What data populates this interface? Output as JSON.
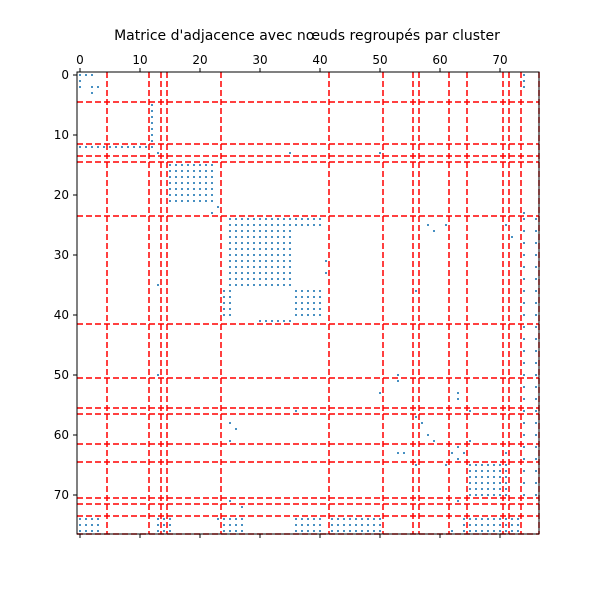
{
  "chart_data": {
    "type": "heatmap",
    "title": "Matrice d'adjacence avec nœuds regroupés par cluster",
    "xlabel": "",
    "ylabel": "",
    "xlim": [
      -0.5,
      76.5
    ],
    "ylim": [
      76.5,
      -0.5
    ],
    "x_ticks": [
      "0",
      "10",
      "20",
      "30",
      "40",
      "50",
      "60",
      "70"
    ],
    "y_ticks": [
      "0",
      "10",
      "20",
      "30",
      "40",
      "50",
      "60",
      "70"
    ],
    "x_tick_position": "top",
    "cluster_boundaries": [
      4.5,
      11.5,
      13.5,
      14.5,
      23.5,
      41.5,
      50.5,
      55.5,
      56.5,
      61.5,
      64.5,
      70.5,
      71.5,
      73.5,
      76.5
    ],
    "boundary_color": "#ff0000",
    "marker_color": "#1f77b4",
    "blocks": [
      {
        "rows": [
          0,
          3
        ],
        "cols": [
          0,
          3
        ],
        "step": 2
      },
      {
        "rows": [
          12,
          12
        ],
        "cols": [
          0,
          11
        ],
        "step": 1
      },
      {
        "rows": [
          15,
          21
        ],
        "cols": [
          15,
          22
        ],
        "step": 1
      },
      {
        "rows": [
          24,
          35
        ],
        "cols": [
          25,
          35
        ],
        "step": 1
      },
      {
        "rows": [
          36,
          40
        ],
        "cols": [
          24,
          25
        ],
        "step": 1
      },
      {
        "rows": [
          36,
          40
        ],
        "cols": [
          36,
          40
        ],
        "step": 1
      },
      {
        "rows": [
          24,
          25
        ],
        "cols": [
          36,
          40
        ],
        "step": 1
      },
      {
        "rows": [
          24,
          70
        ],
        "cols": [
          74,
          76
        ],
        "step": 2
      },
      {
        "rows": [
          65,
          70
        ],
        "cols": [
          65,
          71
        ],
        "step": 1
      },
      {
        "rows": [
          74,
          76
        ],
        "cols": [
          42,
          50
        ],
        "step": 1
      },
      {
        "rows": [
          74,
          76
        ],
        "cols": [
          24,
          27
        ],
        "step": 1
      },
      {
        "rows": [
          74,
          76
        ],
        "cols": [
          36,
          40
        ],
        "step": 1
      },
      {
        "rows": [
          74,
          76
        ],
        "cols": [
          64,
          73
        ],
        "step": 1
      },
      {
        "rows": [
          74,
          76
        ],
        "cols": [
          0,
          3
        ],
        "step": 1
      },
      {
        "rows": [
          74,
          76
        ],
        "cols": [
          13,
          15
        ],
        "step": 1
      }
    ],
    "points": [
      [
        1,
        0
      ],
      [
        0,
        1
      ],
      [
        2,
        3
      ],
      [
        3,
        2
      ],
      [
        0,
        74
      ],
      [
        1,
        74
      ],
      [
        2,
        74
      ],
      [
        74,
        0
      ],
      [
        74,
        1
      ],
      [
        12,
        12
      ],
      [
        13,
        13
      ],
      [
        5,
        12
      ],
      [
        6,
        12
      ],
      [
        7,
        12
      ],
      [
        8,
        12
      ],
      [
        9,
        12
      ],
      [
        10,
        12
      ],
      [
        11,
        12
      ],
      [
        12,
        5
      ],
      [
        12,
        6
      ],
      [
        12,
        7
      ],
      [
        12,
        8
      ],
      [
        12,
        9
      ],
      [
        12,
        10
      ],
      [
        12,
        11
      ],
      [
        22,
        23
      ],
      [
        23,
        22
      ],
      [
        13,
        35
      ],
      [
        35,
        13
      ],
      [
        23,
        74
      ],
      [
        74,
        23
      ],
      [
        27,
        32
      ],
      [
        32,
        27
      ],
      [
        31,
        41
      ],
      [
        41,
        31
      ],
      [
        33,
        41
      ],
      [
        25,
        58
      ],
      [
        26,
        59
      ],
      [
        25,
        61
      ],
      [
        58,
        25
      ],
      [
        59,
        26
      ],
      [
        61,
        25
      ],
      [
        50,
        13
      ],
      [
        13,
        50
      ],
      [
        53,
        50
      ],
      [
        50,
        53
      ],
      [
        51,
        53
      ],
      [
        56,
        36
      ],
      [
        36,
        56
      ],
      [
        56,
        74
      ],
      [
        57,
        56
      ],
      [
        58,
        57
      ],
      [
        60,
        58
      ],
      [
        61,
        59
      ],
      [
        62,
        63
      ],
      [
        63,
        62
      ],
      [
        63,
        64
      ],
      [
        64,
        63
      ],
      [
        54,
        63
      ],
      [
        53,
        63
      ],
      [
        63,
        53
      ],
      [
        63,
        54
      ],
      [
        61,
        65
      ],
      [
        65,
        61
      ],
      [
        41,
        30
      ],
      [
        41,
        31
      ],
      [
        41,
        32
      ],
      [
        41,
        33
      ],
      [
        41,
        34
      ],
      [
        41,
        35
      ],
      [
        25,
        71
      ],
      [
        71,
        25
      ],
      [
        27,
        72
      ],
      [
        72,
        27
      ],
      [
        56,
        65
      ],
      [
        65,
        56
      ],
      [
        63,
        71
      ],
      [
        71,
        63
      ],
      [
        62,
        76
      ],
      [
        76,
        62
      ]
    ]
  }
}
